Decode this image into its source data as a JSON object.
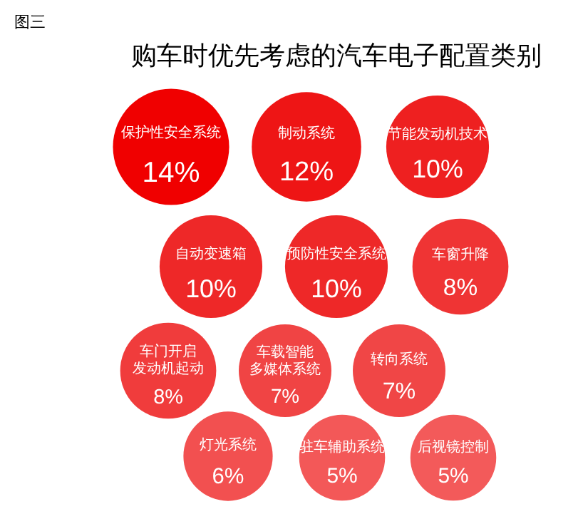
{
  "chart_data": {
    "type": "other",
    "title": "购车时优先考虑的汽车电子配置类别",
    "annotations": [
      "图三"
    ],
    "categories": [
      "保护性安全系统",
      "制动系统",
      "节能发动机技术",
      "自动变速箱",
      "预防性安全系统",
      "车窗升降",
      "车门开启发动机起动",
      "车载智能多媒体系统",
      "转向系统",
      "灯光系统",
      "驻车辅助系统",
      "后视镜控制"
    ],
    "values": [
      14,
      12,
      10,
      10,
      10,
      8,
      8,
      7,
      7,
      6,
      5,
      5
    ],
    "value_labels": [
      "14%",
      "12%",
      "10%",
      "10%",
      "10%",
      "8%",
      "8%",
      "7%",
      "7%",
      "6%",
      "5%",
      "5%"
    ],
    "colors": [
      "#f00000",
      "#ee1515",
      "#ee2020",
      "#ee2828",
      "#ee2828",
      "#ef3434",
      "#f03c3c",
      "#f04444",
      "#f04646",
      "#f25050",
      "#f35858",
      "#f35a5a"
    ]
  }
}
